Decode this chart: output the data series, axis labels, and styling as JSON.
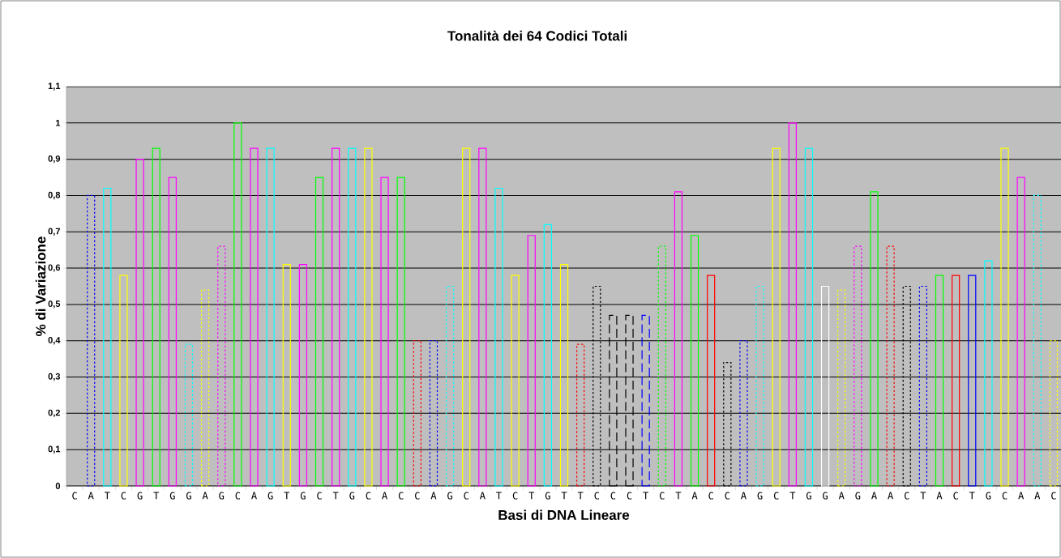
{
  "chart_data": {
    "type": "bar",
    "title": "Tonalità dei 64 Codici Totali",
    "xlabel": "Basi di DNA Lineare",
    "ylabel": "% di Variazione",
    "categories": [
      "C",
      "A",
      "T",
      "C",
      "G",
      "T",
      "G",
      "G",
      "A",
      "G",
      "C",
      "A",
      "G",
      "T",
      "G",
      "C",
      "T",
      "G",
      "C",
      "A",
      "C",
      "C",
      "A",
      "G",
      "C",
      "A",
      "T",
      "C",
      "T",
      "G",
      "T",
      "T",
      "C",
      "C",
      "C",
      "T",
      "C",
      "T",
      "A",
      "C",
      "C",
      "A",
      "G",
      "C",
      "T",
      "G",
      "G",
      "A",
      "G",
      "A",
      "A",
      "C",
      "T",
      "A",
      "C",
      "T",
      "G",
      "C",
      "A",
      "A",
      "C"
    ],
    "series": [
      {
        "line_style": "solid",
        "values": [
          null,
          null,
          0.82,
          0.58,
          0.9,
          0.93,
          0.85,
          null,
          null,
          null,
          1.0,
          0.93,
          0.93,
          0.61,
          0.61,
          0.85,
          0.93,
          0.93,
          0.93,
          0.85,
          0.85,
          null,
          null,
          null,
          0.93,
          0.93,
          0.82,
          0.58,
          0.69,
          0.72,
          0.61,
          null,
          null,
          null,
          null,
          null,
          null,
          0.81,
          0.69,
          0.58,
          null,
          null,
          null,
          0.93,
          1.0,
          0.93,
          0.55,
          null,
          null,
          0.81,
          null,
          null,
          null,
          0.58,
          0.58,
          0.58,
          0.62,
          0.93,
          0.85,
          null,
          null
        ],
        "colors": [
          null,
          null,
          "#00ffff",
          "#ffff00",
          "#ff00ff",
          "#00ff00",
          "#ff00ff",
          null,
          null,
          null,
          "#00ff00",
          "#ff00ff",
          "#00ffff",
          "#ffff00",
          "#ff00ff",
          "#00ff00",
          "#ff00ff",
          "#00ffff",
          "#ffff00",
          "#ff00ff",
          "#00ff00",
          null,
          null,
          null,
          "#ffff00",
          "#ff00ff",
          "#00ffff",
          "#ffff00",
          "#ff00ff",
          "#00ffff",
          "#ffff00",
          null,
          null,
          null,
          null,
          null,
          null,
          "#ff00ff",
          "#00ff00",
          "#ff0000",
          null,
          null,
          null,
          "#ffff00",
          "#ff00ff",
          "#00ffff",
          "#ffffff",
          null,
          null,
          "#00ff00",
          null,
          null,
          null,
          "#00ff00",
          "#ff0000",
          "#0000ff",
          "#00ffff",
          "#ffff00",
          "#ff00ff",
          null,
          null
        ]
      },
      {
        "line_style": "dotted",
        "values": [
          null,
          0.8,
          null,
          null,
          null,
          null,
          null,
          0.39,
          0.54,
          0.66,
          null,
          null,
          null,
          null,
          null,
          null,
          null,
          null,
          null,
          null,
          null,
          0.4,
          0.4,
          0.55,
          null,
          null,
          null,
          null,
          null,
          null,
          null,
          0.39,
          0.55,
          null,
          null,
          null,
          0.66,
          null,
          null,
          null,
          0.34,
          0.4,
          0.55,
          null,
          null,
          null,
          null,
          0.54,
          0.66,
          null,
          0.66,
          0.55,
          0.55,
          null,
          null,
          null,
          null,
          null,
          null,
          0.8,
          0.4
        ],
        "colors": [
          null,
          "#0000ff",
          null,
          null,
          null,
          null,
          null,
          "#00ffff",
          "#ffff00",
          "#ff00ff",
          null,
          null,
          null,
          null,
          null,
          null,
          null,
          null,
          null,
          null,
          null,
          "#ff0000",
          "#0000ff",
          "#00ffff",
          null,
          null,
          null,
          null,
          null,
          null,
          null,
          "#ff0000",
          "#000000",
          null,
          null,
          null,
          "#00ff00",
          null,
          null,
          null,
          "#000000",
          "#0000ff",
          "#00ffff",
          null,
          null,
          null,
          null,
          "#ffff00",
          "#ff00ff",
          null,
          "#ff0000",
          "#000000",
          "#0000ff",
          null,
          null,
          null,
          null,
          null,
          null,
          "#00ffff",
          "#ffff00"
        ]
      },
      {
        "line_style": "dashed",
        "values": [
          null,
          null,
          null,
          null,
          null,
          null,
          null,
          null,
          null,
          null,
          null,
          null,
          null,
          null,
          null,
          null,
          null,
          null,
          null,
          null,
          null,
          null,
          null,
          null,
          null,
          null,
          null,
          null,
          null,
          null,
          null,
          null,
          null,
          0.47,
          0.47,
          0.47,
          null,
          null,
          null,
          null,
          null,
          null,
          null,
          null,
          null,
          null,
          null,
          null,
          null,
          null,
          null,
          null,
          null,
          null,
          null,
          null,
          null,
          null,
          null,
          null,
          null
        ],
        "colors": [
          null,
          null,
          null,
          null,
          null,
          null,
          null,
          null,
          null,
          null,
          null,
          null,
          null,
          null,
          null,
          null,
          null,
          null,
          null,
          null,
          null,
          null,
          null,
          null,
          null,
          null,
          null,
          null,
          null,
          null,
          null,
          null,
          null,
          "#000000",
          "#000000",
          "#0000ff",
          null,
          null,
          null,
          null,
          null,
          null,
          null,
          null,
          null,
          null,
          null,
          null,
          null,
          null,
          null,
          null,
          null,
          null,
          null,
          null,
          null,
          null,
          null,
          null,
          null
        ]
      }
    ],
    "ylim": [
      0,
      1.1
    ],
    "yticks": [
      0,
      {
        "value": 0.1,
        "label": "0,1"
      },
      {
        "value": 0.2,
        "label": "0,2"
      },
      {
        "value": 0.3,
        "label": "0,3"
      },
      {
        "value": 0.4,
        "label": "0,4"
      },
      {
        "value": 0.5,
        "label": "0,5"
      },
      {
        "value": 0.6,
        "label": "0,6"
      },
      {
        "value": 0.7,
        "label": "0,7"
      },
      {
        "value": 0.8,
        "label": "0,8"
      },
      {
        "value": 0.9,
        "label": "0,9"
      },
      1,
      {
        "value": 1.1,
        "label": "1,1"
      }
    ],
    "grid": "y"
  }
}
